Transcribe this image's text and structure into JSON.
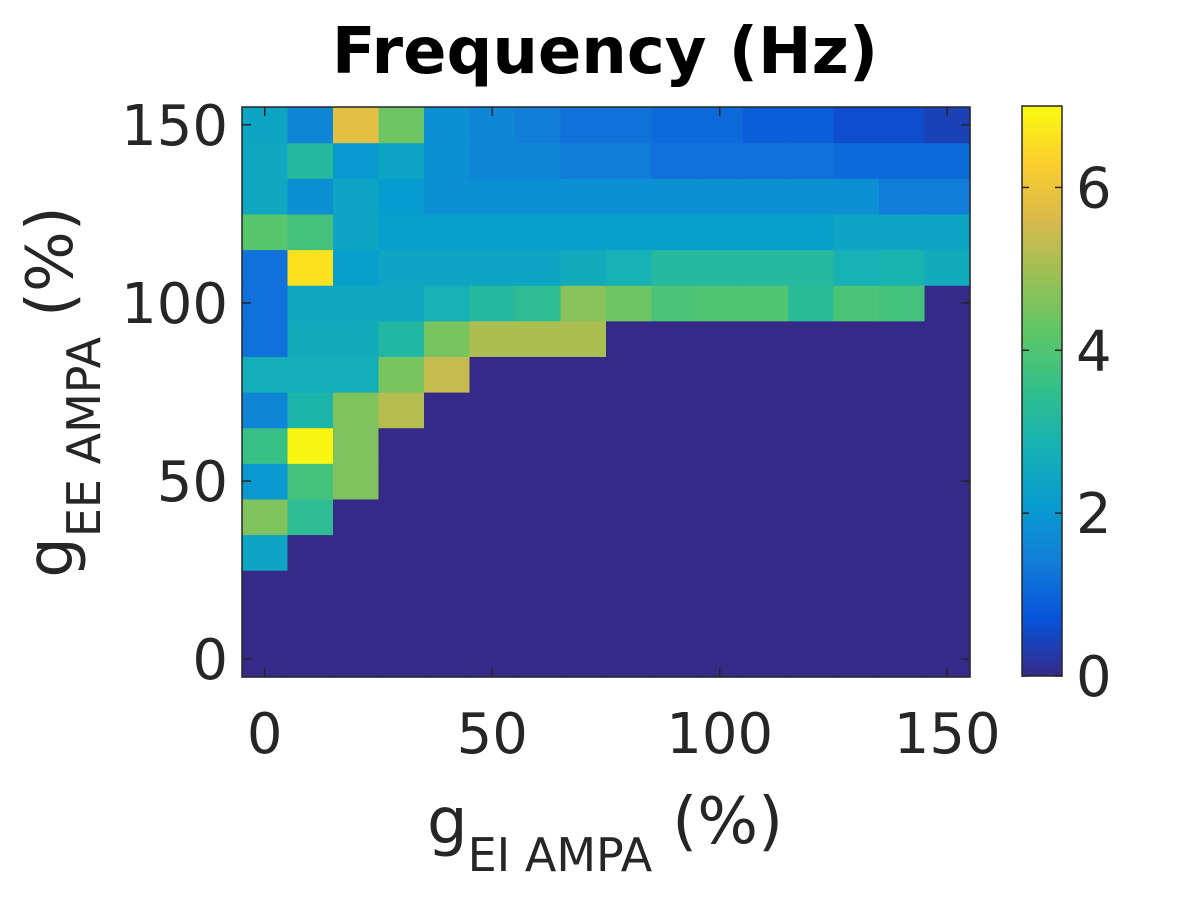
{
  "chart_data": {
    "type": "heatmap",
    "title": "Frequency (Hz)",
    "xlabel": {
      "main": "g",
      "subscript": "EI AMPA",
      "suffix": "(%)"
    },
    "ylabel": {
      "main": "g",
      "subscript": "EE AMPA",
      "suffix": "(%)"
    },
    "x": [
      0,
      10,
      20,
      30,
      40,
      50,
      60,
      70,
      80,
      90,
      100,
      110,
      120,
      130,
      140,
      150
    ],
    "y": [
      0,
      10,
      20,
      30,
      40,
      50,
      60,
      70,
      80,
      90,
      100,
      110,
      120,
      130,
      140,
      150
    ],
    "xlim": [
      -5,
      155
    ],
    "ylim": [
      -5,
      155
    ],
    "xticks": [
      0,
      50,
      100,
      150
    ],
    "yticks": [
      0,
      50,
      100,
      150
    ],
    "xtick_labels": [
      "0",
      "50",
      "100",
      "150"
    ],
    "ytick_labels": [
      "0",
      "50",
      "100",
      "150"
    ],
    "colorbar": {
      "range": [
        0,
        7
      ],
      "ticks": [
        0,
        2,
        4,
        6
      ],
      "tick_labels": [
        "0",
        "2",
        "4",
        "6"
      ],
      "colormap": "parula"
    },
    "z": [
      [
        0,
        0,
        0,
        0,
        0,
        0,
        0,
        0,
        0,
        0,
        0,
        0,
        0,
        0,
        0,
        0
      ],
      [
        0,
        0,
        0,
        0,
        0,
        0,
        0,
        0,
        0,
        0,
        0,
        0,
        0,
        0,
        0,
        0
      ],
      [
        0,
        0,
        0,
        0,
        0,
        0,
        0,
        0,
        0,
        0,
        0,
        0,
        0,
        0,
        0,
        0
      ],
      [
        2.4,
        0,
        0,
        0,
        0,
        0,
        0,
        0,
        0,
        0,
        0,
        0,
        0,
        0,
        0,
        0
      ],
      [
        4.6,
        3.4,
        0,
        0,
        0,
        0,
        0,
        0,
        0,
        0,
        0,
        0,
        0,
        0,
        0,
        0
      ],
      [
        2.0,
        3.8,
        4.6,
        0,
        0,
        0,
        0,
        0,
        0,
        0,
        0,
        0,
        0,
        0,
        0,
        0
      ],
      [
        3.6,
        6.9,
        4.6,
        0,
        0,
        0,
        0,
        0,
        0,
        0,
        0,
        0,
        0,
        0,
        0,
        0
      ],
      [
        1.6,
        3.0,
        4.6,
        5.2,
        0,
        0,
        0,
        0,
        0,
        0,
        0,
        0,
        0,
        0,
        0,
        0
      ],
      [
        2.7,
        2.7,
        2.7,
        4.5,
        5.4,
        0,
        0,
        0,
        0,
        0,
        0,
        0,
        0,
        0,
        0,
        0
      ],
      [
        1.2,
        2.6,
        2.6,
        3.1,
        4.5,
        5.1,
        5.1,
        5.1,
        0,
        0,
        0,
        0,
        0,
        0,
        0,
        0
      ],
      [
        1.2,
        2.5,
        2.5,
        2.5,
        2.8,
        3.2,
        3.4,
        4.7,
        4.4,
        3.9,
        4.0,
        4.0,
        3.3,
        3.9,
        3.8,
        0
      ],
      [
        1.2,
        6.6,
        2.2,
        2.4,
        2.4,
        2.4,
        2.4,
        2.6,
        2.8,
        3.2,
        3.2,
        3.2,
        3.2,
        2.8,
        2.9,
        2.6
      ],
      [
        4.1,
        3.8,
        2.4,
        2.2,
        2.2,
        2.2,
        2.2,
        2.2,
        2.2,
        2.2,
        2.2,
        2.2,
        2.2,
        2.4,
        2.4,
        2.4
      ],
      [
        2.5,
        1.8,
        2.4,
        2.1,
        1.8,
        1.8,
        1.8,
        1.8,
        1.8,
        1.8,
        1.8,
        1.8,
        1.8,
        1.8,
        1.4,
        1.4
      ],
      [
        2.5,
        3.2,
        2.0,
        2.4,
        1.8,
        1.6,
        1.6,
        1.4,
        1.4,
        1.2,
        1.2,
        1.2,
        1.2,
        1.1,
        1.1,
        1.1
      ],
      [
        2.4,
        1.6,
        5.8,
        4.4,
        1.8,
        1.6,
        1.4,
        1.2,
        1.2,
        1.1,
        1.1,
        0.9,
        0.9,
        0.6,
        0.6,
        0.4
      ]
    ]
  }
}
